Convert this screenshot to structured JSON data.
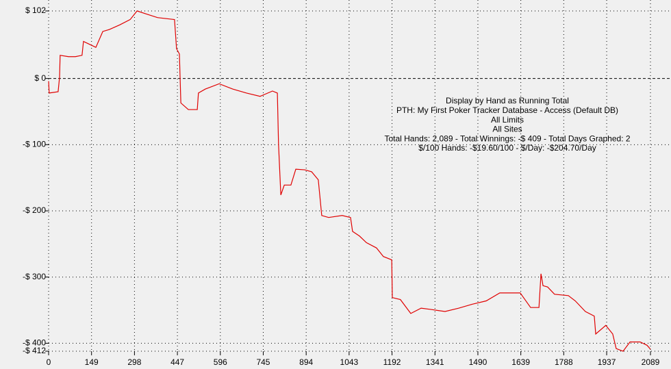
{
  "chart_data": {
    "type": "line",
    "annotations": [
      "Display by Hand as Running Total",
      "PTH: My First Poker Tracker Database - Access (Default DB)",
      "All Limits",
      "All Sites",
      "Total Hands: 2,089 - Total Winnings: -$ 409 - Total Days Graphed: 2",
      "$/100 Hands: -$19.60/100 - $/Day: -$204.70/Day"
    ],
    "x": [
      0,
      2,
      33,
      38,
      40,
      69,
      93,
      116,
      121,
      164,
      188,
      211,
      247,
      283,
      307,
      342,
      378,
      437,
      444,
      454,
      459,
      485,
      516,
      520,
      544,
      592,
      639,
      687,
      734,
      777,
      794,
      798,
      806,
      818,
      841,
      858,
      889,
      913,
      936,
      948,
      972,
      1019,
      1048,
      1055,
      1079,
      1103,
      1138,
      1162,
      1191,
      1193,
      1221,
      1257,
      1293,
      1328,
      1376,
      1423,
      1471,
      1519,
      1566,
      1637,
      1673,
      1702,
      1709,
      1716,
      1732,
      1756,
      1804,
      1828,
      1863,
      1894,
      1899,
      1934,
      1958,
      1970,
      1994,
      2018,
      2053,
      2077,
      2089
    ],
    "series": [
      {
        "color": "#e00000",
        "values": [
          -4,
          -22,
          -20,
          2,
          35,
          33,
          33,
          35,
          56,
          47,
          71,
          74,
          81,
          89,
          102,
          97,
          92,
          89,
          45,
          37,
          -37,
          -47,
          -47,
          -22,
          -16,
          -8,
          -16,
          -22,
          -27,
          -19,
          -22,
          -99,
          -176,
          -161,
          -161,
          -137,
          -138,
          -141,
          -153,
          -207,
          -210,
          -207,
          -210,
          -231,
          -238,
          -248,
          -256,
          -269,
          -274,
          -331,
          -334,
          -355,
          -347,
          -349,
          -352,
          -347,
          -341,
          -336,
          -324,
          -324,
          -346,
          -346,
          -295,
          -313,
          -315,
          -326,
          -328,
          -336,
          -352,
          -359,
          -386,
          -373,
          -386,
          -408,
          -412,
          -398,
          -398,
          -403,
          -409
        ]
      }
    ],
    "xlim": [
      0,
      2089
    ],
    "ylim": [
      -412,
      102
    ],
    "xticks": [
      0,
      149,
      298,
      447,
      596,
      745,
      894,
      1043,
      1192,
      1341,
      1490,
      1639,
      1788,
      1937,
      2089
    ],
    "yticks": [
      {
        "value": 102,
        "label": "$ 102"
      },
      {
        "value": 0,
        "label": "$ 0"
      },
      {
        "value": -100,
        "label": "-$ 100"
      },
      {
        "value": -200,
        "label": "-$ 200"
      },
      {
        "value": -300,
        "label": "-$ 300"
      },
      {
        "value": -400,
        "label": "-$ 400"
      },
      {
        "value": -412,
        "label": "-$ 412"
      }
    ],
    "grid": true
  }
}
